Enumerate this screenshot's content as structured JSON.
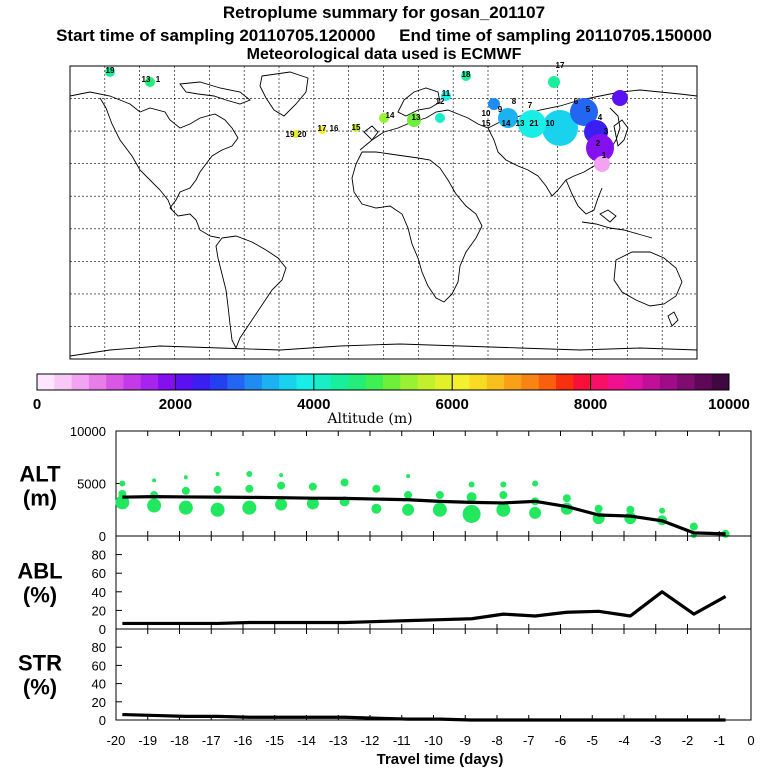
{
  "header": {
    "title": "Retroplume summary for gosan_201107",
    "sampling": "Start time of sampling 20110705.120000     End time of sampling 20110705.150000",
    "met": "Meteorological data used is ECMWF"
  },
  "colorbar": {
    "label": "Altitude (m)",
    "ticks": [
      "0",
      "2000",
      "4000",
      "6000",
      "8000",
      "10000"
    ],
    "colors": [
      "#ffe6ff",
      "#f7c9f7",
      "#f2a3f2",
      "#e77ee7",
      "#d957e6",
      "#c43ae8",
      "#a624ee",
      "#8410f0",
      "#5a10f0",
      "#3a1ef2",
      "#2440f0",
      "#2266f2",
      "#1f8cf2",
      "#1cb2f2",
      "#19d3ee",
      "#19eee6",
      "#19eec4",
      "#19ee9c",
      "#22ee78",
      "#3ef052",
      "#6ef03a",
      "#9af032",
      "#c2f02c",
      "#e2f02a",
      "#f5f02c",
      "#f8dc24",
      "#f8c01c",
      "#f8a018",
      "#f88414",
      "#f86010",
      "#f83010",
      "#f8103a",
      "#f81068",
      "#f01090",
      "#e010a8",
      "#c01098",
      "#a00c88",
      "#800c70",
      "#600858",
      "#400840"
    ]
  },
  "map_labels": [
    "19",
    "13",
    "1",
    "17",
    "18",
    "19",
    "20",
    "17",
    "16",
    "15",
    "14",
    "13",
    "12",
    "11",
    "10",
    "9",
    "8",
    "7",
    "6",
    "5",
    "4",
    "3",
    "2",
    "1",
    "15",
    "14",
    "13",
    "21",
    "10"
  ],
  "chart_data": [
    {
      "type": "line",
      "panel": "ALT",
      "ylabel": "ALT",
      "yunit": "(m)",
      "ylim": [
        0,
        10000
      ],
      "yticks": [
        "0",
        "5000",
        "10000"
      ],
      "x": [
        -19.8,
        -18.8,
        -17.8,
        -16.8,
        -15.8,
        -14.8,
        -13.8,
        -12.8,
        -11.8,
        -10.8,
        -9.8,
        -8.8,
        -7.8,
        -6.8,
        -5.8,
        -4.8,
        -3.8,
        -2.8,
        -1.8,
        -0.8
      ],
      "values": [
        3700,
        3750,
        3720,
        3700,
        3680,
        3650,
        3600,
        3580,
        3520,
        3450,
        3300,
        3200,
        3150,
        3300,
        2800,
        2000,
        1900,
        1450,
        300,
        200
      ],
      "scatter": [
        {
          "x": -19.8,
          "y": 3200,
          "s": 7
        },
        {
          "x": -19.8,
          "y": 4000,
          "s": 4
        },
        {
          "x": -19.8,
          "y": 5000,
          "s": 3
        },
        {
          "x": -18.8,
          "y": 2900,
          "s": 7
        },
        {
          "x": -18.8,
          "y": 3900,
          "s": 4
        },
        {
          "x": -18.8,
          "y": 5300,
          "s": 2
        },
        {
          "x": -17.8,
          "y": 2700,
          "s": 7
        },
        {
          "x": -17.8,
          "y": 4300,
          "s": 4
        },
        {
          "x": -17.8,
          "y": 5600,
          "s": 2
        },
        {
          "x": -16.8,
          "y": 2500,
          "s": 7
        },
        {
          "x": -16.8,
          "y": 4400,
          "s": 4
        },
        {
          "x": -16.8,
          "y": 5900,
          "s": 2
        },
        {
          "x": -15.8,
          "y": 2700,
          "s": 7
        },
        {
          "x": -15.8,
          "y": 4500,
          "s": 4
        },
        {
          "x": -15.8,
          "y": 5900,
          "s": 3
        },
        {
          "x": -14.8,
          "y": 3000,
          "s": 6
        },
        {
          "x": -14.8,
          "y": 4800,
          "s": 4
        },
        {
          "x": -14.8,
          "y": 5800,
          "s": 2
        },
        {
          "x": -13.8,
          "y": 3100,
          "s": 6
        },
        {
          "x": -13.8,
          "y": 4700,
          "s": 4
        },
        {
          "x": -12.8,
          "y": 3300,
          "s": 5
        },
        {
          "x": -12.8,
          "y": 5100,
          "s": 4
        },
        {
          "x": -11.8,
          "y": 2600,
          "s": 5
        },
        {
          "x": -11.8,
          "y": 4500,
          "s": 4
        },
        {
          "x": -10.8,
          "y": 2500,
          "s": 6
        },
        {
          "x": -10.8,
          "y": 3900,
          "s": 4
        },
        {
          "x": -10.8,
          "y": 5700,
          "s": 2
        },
        {
          "x": -9.8,
          "y": 2500,
          "s": 7
        },
        {
          "x": -9.8,
          "y": 3900,
          "s": 4
        },
        {
          "x": -8.8,
          "y": 2100,
          "s": 9
        },
        {
          "x": -8.8,
          "y": 3700,
          "s": 5
        },
        {
          "x": -8.8,
          "y": 4900,
          "s": 3
        },
        {
          "x": -7.8,
          "y": 2500,
          "s": 7
        },
        {
          "x": -7.8,
          "y": 3900,
          "s": 4
        },
        {
          "x": -7.8,
          "y": 4900,
          "s": 3
        },
        {
          "x": -6.8,
          "y": 2200,
          "s": 6
        },
        {
          "x": -6.8,
          "y": 3300,
          "s": 4
        },
        {
          "x": -6.8,
          "y": 5000,
          "s": 3
        },
        {
          "x": -5.8,
          "y": 2600,
          "s": 6
        },
        {
          "x": -5.8,
          "y": 3600,
          "s": 4
        },
        {
          "x": -4.8,
          "y": 1700,
          "s": 6
        },
        {
          "x": -4.8,
          "y": 2600,
          "s": 4
        },
        {
          "x": -3.8,
          "y": 1700,
          "s": 6
        },
        {
          "x": -3.8,
          "y": 2500,
          "s": 4
        },
        {
          "x": -2.8,
          "y": 1500,
          "s": 5
        },
        {
          "x": -2.8,
          "y": 2400,
          "s": 3
        },
        {
          "x": -1.8,
          "y": 900,
          "s": 4
        },
        {
          "x": -1.8,
          "y": 100,
          "s": 3
        },
        {
          "x": -0.8,
          "y": 200,
          "s": 4
        }
      ]
    },
    {
      "type": "line",
      "panel": "ABL",
      "ylabel": "ABL",
      "yunit": "(%)",
      "ylim": [
        0,
        100
      ],
      "yticks": [
        "0",
        "20",
        "40",
        "60",
        "80"
      ],
      "x": [
        -19.8,
        -18.8,
        -17.8,
        -16.8,
        -15.8,
        -14.8,
        -13.8,
        -12.8,
        -11.8,
        -10.8,
        -9.8,
        -8.8,
        -7.8,
        -6.8,
        -5.8,
        -4.8,
        -3.8,
        -2.8,
        -1.8,
        -0.8
      ],
      "values": [
        6,
        6,
        6,
        6,
        7,
        7,
        7,
        7,
        8,
        9,
        10,
        11,
        16,
        14,
        18,
        19,
        14,
        40,
        16,
        35
      ]
    },
    {
      "type": "line",
      "panel": "STR",
      "ylabel": "STR",
      "yunit": "(%)",
      "ylim": [
        0,
        100
      ],
      "yticks": [
        "0",
        "20",
        "40",
        "60",
        "80"
      ],
      "x": [
        -19.8,
        -18.8,
        -17.8,
        -16.8,
        -15.8,
        -14.8,
        -13.8,
        -12.8,
        -11.8,
        -10.8,
        -9.8,
        -8.8,
        -7.8,
        -6.8,
        -5.8,
        -4.8,
        -3.8,
        -2.8,
        -1.8,
        -0.8
      ],
      "values": [
        6,
        5,
        4,
        4,
        3,
        3,
        3,
        3,
        2,
        1,
        1,
        0,
        0,
        0,
        0,
        0,
        0,
        0,
        0,
        0
      ],
      "xlabel": "Travel time (days)",
      "xticks": [
        "-20",
        "-19",
        "-18",
        "-17",
        "-16",
        "-15",
        "-14",
        "-13",
        "-12",
        "-11",
        "-10",
        "-9",
        "-8",
        "-7",
        "-6",
        "-5",
        "-4",
        "-3",
        "-2",
        "-1",
        "0"
      ],
      "xlim": [
        -20,
        0
      ]
    }
  ]
}
